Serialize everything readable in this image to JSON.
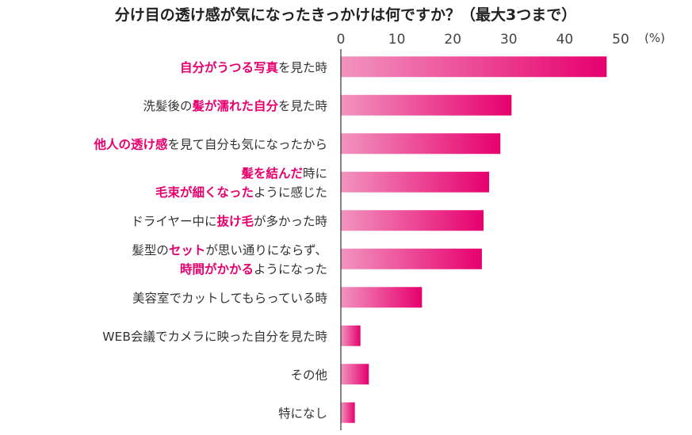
{
  "chart_data": {
    "type": "bar",
    "orientation": "horizontal",
    "title": "分け目の透け感が気になったきっかけは何ですか？（最大3つまで）",
    "unit_label": "(%)",
    "xlim": [
      0,
      50
    ],
    "ticks": [
      0,
      10,
      20,
      30,
      40,
      50
    ],
    "grid": false,
    "colors": {
      "bar_start": "#f294bf",
      "bar_end": "#e6006e",
      "highlight_text": "#e6006e",
      "axis": "#333333"
    },
    "categories": [
      {
        "lines": [
          [
            {
              "t": "自分がうつる写真",
              "h": true
            },
            {
              "t": "を見た時",
              "h": false
            }
          ]
        ],
        "value": 47.5
      },
      {
        "lines": [
          [
            {
              "t": "洗髪後の",
              "h": false
            },
            {
              "t": "髪が濡れた自分",
              "h": true
            },
            {
              "t": "を見た時",
              "h": false
            }
          ]
        ],
        "value": 30.5
      },
      {
        "lines": [
          [
            {
              "t": "他人の透け感",
              "h": true
            },
            {
              "t": "を見て自分も気になったから",
              "h": false
            }
          ]
        ],
        "value": 28.5
      },
      {
        "lines": [
          [
            {
              "t": "髪を結んだ",
              "h": true
            },
            {
              "t": "時に",
              "h": false
            }
          ],
          [
            {
              "t": "毛束が細くなった",
              "h": true
            },
            {
              "t": "ように感じた",
              "h": false
            }
          ]
        ],
        "value": 26.5
      },
      {
        "lines": [
          [
            {
              "t": "ドライヤー中に",
              "h": false
            },
            {
              "t": "抜け毛",
              "h": true
            },
            {
              "t": "が多かった時",
              "h": false
            }
          ]
        ],
        "value": 25.5
      },
      {
        "lines": [
          [
            {
              "t": "髪型の",
              "h": false
            },
            {
              "t": "セット",
              "h": true
            },
            {
              "t": "が思い通りにならず、",
              "h": false
            }
          ],
          [
            {
              "t": "時間がかかる",
              "h": true
            },
            {
              "t": "ようになった",
              "h": false
            }
          ]
        ],
        "value": 25.2
      },
      {
        "lines": [
          [
            {
              "t": "美容室でカットしてもらっている時",
              "h": false
            }
          ]
        ],
        "value": 14.5
      },
      {
        "lines": [
          [
            {
              "t": "WEB会議でカメラに映った自分を見た時",
              "h": false
            }
          ]
        ],
        "value": 3.5
      },
      {
        "lines": [
          [
            {
              "t": "その他",
              "h": false
            }
          ]
        ],
        "value": 5.0
      },
      {
        "lines": [
          [
            {
              "t": "特になし",
              "h": false
            }
          ]
        ],
        "value": 2.5
      }
    ]
  }
}
